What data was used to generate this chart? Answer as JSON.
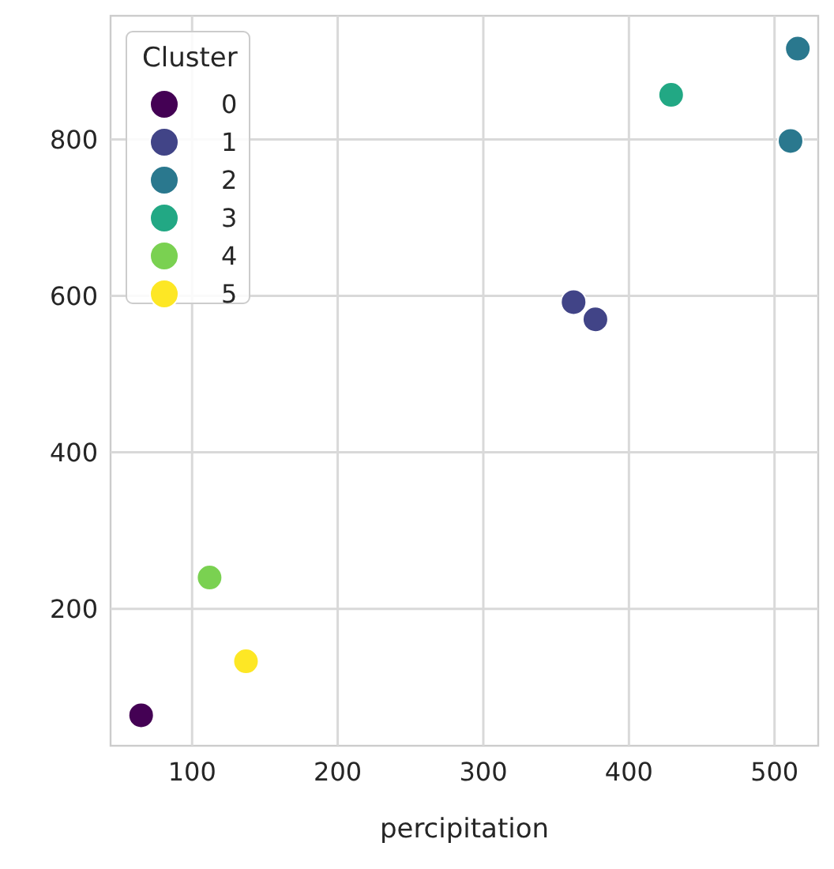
{
  "chart_data": {
    "type": "scatter",
    "xlabel": "percipitation",
    "legend_title": "Cluster",
    "legend": "top left",
    "grid": true,
    "marker": "circle",
    "xlim": [
      44,
      530
    ],
    "xticks": [
      100,
      200,
      300,
      400,
      500
    ],
    "ylim": [
      25,
      958
    ],
    "yticks": [
      200,
      400,
      600,
      800
    ],
    "series": [
      {
        "name": "0",
        "color": "#440154",
        "x": [
          65
        ],
        "values": [
          64
        ]
      },
      {
        "name": "1",
        "color": "#414487",
        "x": [
          362,
          377
        ],
        "values": [
          592,
          570
        ]
      },
      {
        "name": "2",
        "color": "#2a788e",
        "x": [
          511,
          516
        ],
        "values": [
          798,
          916
        ]
      },
      {
        "name": "3",
        "color": "#22a884",
        "x": [
          429
        ],
        "values": [
          857
        ]
      },
      {
        "name": "4",
        "color": "#7ad151",
        "x": [
          112
        ],
        "values": [
          240
        ]
      },
      {
        "name": "5",
        "color": "#fde725",
        "x": [
          137
        ],
        "values": [
          133
        ]
      }
    ]
  }
}
